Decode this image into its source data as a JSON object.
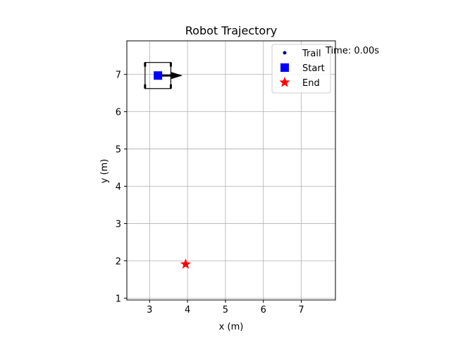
{
  "chart_data": {
    "type": "scatter",
    "title": "Robot Trajectory",
    "xlabel": "x (m)",
    "ylabel": "y (m)",
    "xlim": [
      2.4,
      7.9
    ],
    "ylim": [
      0.95,
      7.9
    ],
    "xticks": [
      3,
      4,
      5,
      6,
      7
    ],
    "yticks": [
      1,
      2,
      3,
      4,
      5,
      6,
      7
    ],
    "grid": true,
    "legend_position": "top-right",
    "legend": [
      {
        "label": "Trail",
        "marker": "dot",
        "color": "#00008b"
      },
      {
        "label": "Start",
        "marker": "square",
        "color": "#0000ff"
      },
      {
        "label": "End",
        "marker": "star",
        "color": "#ff0000"
      }
    ],
    "series": [
      {
        "name": "Trail",
        "points": []
      },
      {
        "name": "Start",
        "points": [
          [
            3.22,
            6.97
          ]
        ]
      },
      {
        "name": "End",
        "points": [
          [
            3.95,
            1.91
          ]
        ]
      }
    ],
    "robot": {
      "x": 3.22,
      "y": 6.97,
      "heading_deg": 0,
      "length": 0.68,
      "width": 0.7,
      "arrow_length": 0.65
    },
    "annotation": "Time: 0.00s"
  }
}
